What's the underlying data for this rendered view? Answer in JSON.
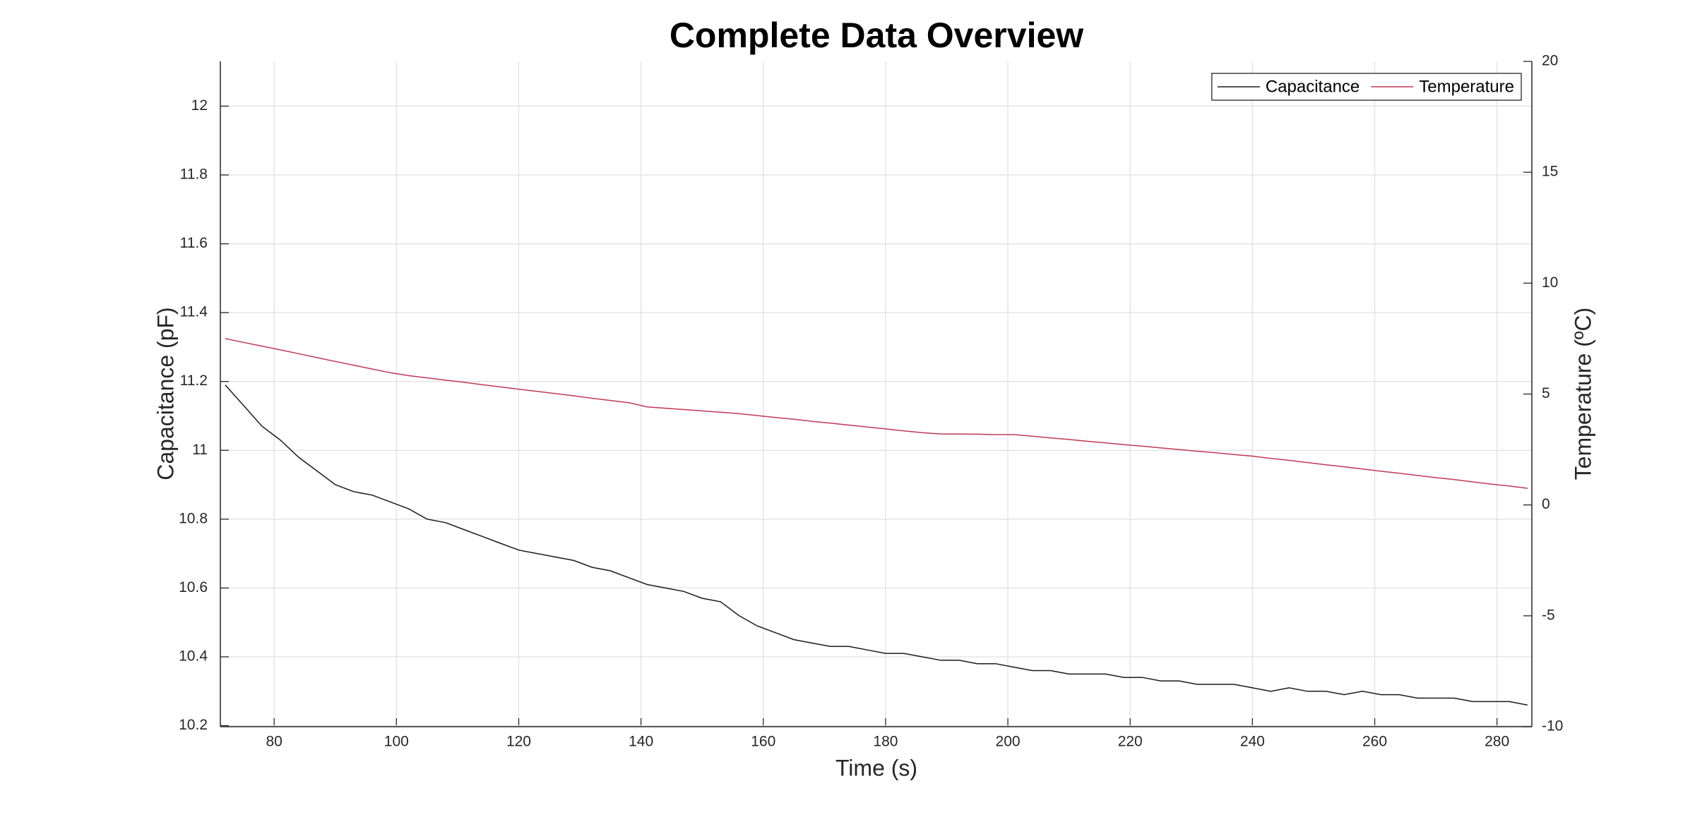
{
  "chart_data": {
    "type": "line",
    "title": "Complete Data Overview",
    "x_label": "Time (s)",
    "y_label": "Capacitance (pF)",
    "y2_label": "Temperature (ºC)",
    "x": [
      72,
      75,
      78,
      81,
      84,
      87,
      90,
      93,
      96,
      99,
      102,
      105,
      108,
      111,
      114,
      117,
      120,
      123,
      126,
      129,
      132,
      135,
      138,
      141,
      144,
      147,
      150,
      153,
      156,
      159,
      162,
      165,
      168,
      171,
      174,
      177,
      180,
      183,
      186,
      189,
      192,
      195,
      198,
      201,
      204,
      207,
      210,
      213,
      216,
      219,
      222,
      225,
      228,
      231,
      234,
      237,
      240,
      243,
      246,
      249,
      252,
      255,
      258,
      261,
      264,
      267,
      270,
      273,
      276,
      279,
      282,
      285
    ],
    "series": [
      {
        "name": "Capacitance",
        "color": "#1a1a1a",
        "axis": "y",
        "values": [
          11.19,
          11.13,
          11.07,
          11.03,
          10.98,
          10.94,
          10.9,
          10.88,
          10.87,
          10.85,
          10.83,
          10.8,
          10.79,
          10.77,
          10.75,
          10.73,
          10.71,
          10.7,
          10.69,
          10.68,
          10.66,
          10.65,
          10.63,
          10.61,
          10.6,
          10.59,
          10.57,
          10.56,
          10.52,
          10.49,
          10.47,
          10.45,
          10.44,
          10.43,
          10.43,
          10.42,
          10.41,
          10.41,
          10.4,
          10.39,
          10.39,
          10.38,
          10.38,
          10.37,
          10.36,
          10.36,
          10.35,
          10.35,
          10.35,
          10.34,
          10.34,
          10.33,
          10.33,
          10.32,
          10.32,
          10.32,
          10.31,
          10.3,
          10.31,
          10.3,
          10.3,
          10.29,
          10.3,
          10.29,
          10.29,
          10.28,
          10.28,
          10.28,
          10.27,
          10.27,
          10.27,
          10.26
        ]
      },
      {
        "name": "Temperature",
        "color": "#c0395a",
        "axis": "y2",
        "values": [
          7.5,
          7.33,
          7.16,
          6.99,
          6.82,
          6.64,
          6.47,
          6.3,
          6.13,
          5.96,
          5.83,
          5.73,
          5.63,
          5.53,
          5.42,
          5.32,
          5.22,
          5.12,
          5.02,
          4.92,
          4.81,
          4.71,
          4.61,
          4.42,
          4.36,
          4.3,
          4.24,
          4.18,
          4.12,
          4.03,
          3.94,
          3.86,
          3.77,
          3.69,
          3.6,
          3.51,
          3.43,
          3.34,
          3.26,
          3.2,
          3.2,
          3.19,
          3.17,
          3.17,
          3.1,
          3.02,
          2.95,
          2.87,
          2.8,
          2.72,
          2.65,
          2.57,
          2.5,
          2.42,
          2.35,
          2.27,
          2.2,
          2.1,
          2.01,
          1.91,
          1.81,
          1.72,
          1.62,
          1.52,
          1.43,
          1.33,
          1.23,
          1.14,
          1.04,
          0.94,
          0.85,
          0.75
        ]
      }
    ],
    "xlim": [
      71.2,
      285.7
    ],
    "xticks": [
      80,
      100,
      120,
      140,
      160,
      180,
      200,
      220,
      240,
      260,
      280
    ],
    "ylim": [
      10.197,
      12.13
    ],
    "yticks": [
      10.2,
      10.4,
      10.6,
      10.8,
      11,
      11.2,
      11.4,
      11.6,
      11.8,
      12
    ],
    "y2lim": [
      -10,
      20
    ],
    "y2ticks": [
      -10,
      -5,
      0,
      5,
      10,
      15,
      20
    ],
    "grid": true,
    "legend": "top-right"
  }
}
